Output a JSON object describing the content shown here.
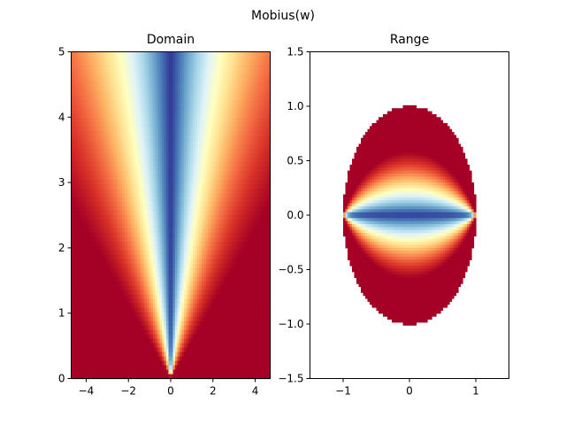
{
  "figure": {
    "title": "Mobius(w)",
    "colormap": [
      "#a50026",
      "#d73027",
      "#f46d43",
      "#fdae61",
      "#fee090",
      "#ffffbf",
      "#e0f3f8",
      "#abd9e9",
      "#74add1",
      "#4575b4",
      "#313695"
    ]
  },
  "chart_data": [
    {
      "type": "heatmap",
      "title": "Domain",
      "xlabel": "",
      "ylabel": "",
      "xlim": [
        -4.71,
        4.71
      ],
      "ylim": [
        0,
        5
      ],
      "xticks": [
        -4,
        -2,
        0,
        2,
        4
      ],
      "yticks": [
        0,
        1,
        2,
        3,
        4,
        5
      ],
      "xtick_labels": [
        "−4",
        "−2",
        "0",
        "2",
        "4"
      ],
      "ytick_labels": [
        "0",
        "1",
        "2",
        "3",
        "4",
        "5"
      ],
      "colormap": "RdYlBu",
      "grid": false
    },
    {
      "type": "heatmap",
      "title": "Range",
      "xlabel": "",
      "ylabel": "",
      "xlim": [
        -1.5,
        1.5
      ],
      "ylim": [
        -1.5,
        1.5
      ],
      "xticks": [
        -1,
        0,
        1
      ],
      "yticks": [
        -1.5,
        -1.0,
        -0.5,
        0.0,
        0.5,
        1.0,
        1.5
      ],
      "xtick_labels": [
        "−1",
        "0",
        "1"
      ],
      "ytick_labels": [
        "−1.5",
        "−1.0",
        "−0.5",
        "0.0",
        "0.5",
        "1.0",
        "1.5"
      ],
      "shape": "unit disk",
      "colormap": "RdYlBu",
      "grid": false
    }
  ]
}
